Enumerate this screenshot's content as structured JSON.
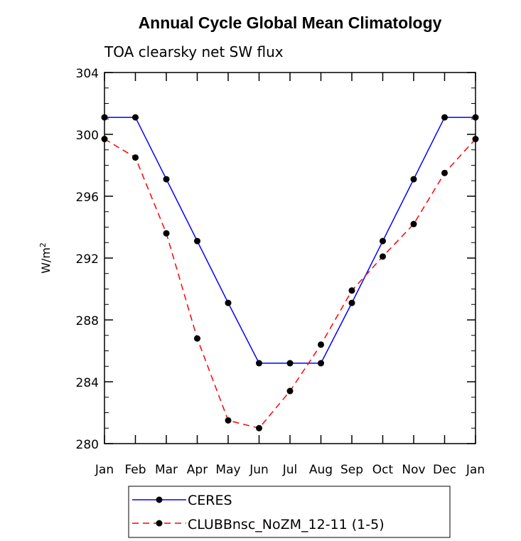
{
  "chart_data": {
    "type": "line",
    "title": "Annual Cycle Global Mean Climatology",
    "subtitle": "TOA clearsky net SW flux",
    "ylabel_main": "W/m",
    "ylabel_sup": "2",
    "xlabel": "",
    "categories": [
      "Jan",
      "Feb",
      "Mar",
      "Apr",
      "May",
      "Jun",
      "Jul",
      "Aug",
      "Sep",
      "Oct",
      "Nov",
      "Dec",
      "Jan"
    ],
    "ylim": [
      280,
      304
    ],
    "yticks": [
      280,
      284,
      288,
      292,
      296,
      300,
      304
    ],
    "yminor_step": 1,
    "grid": false,
    "legend_position": "bottom",
    "series": [
      {
        "name": "CERES",
        "color": "#0000ff",
        "dash": "solid",
        "marker": "circle",
        "values": [
          301.1,
          301.1,
          297.1,
          293.1,
          289.1,
          285.2,
          285.2,
          285.2,
          289.1,
          293.1,
          297.1,
          301.1,
          301.1
        ]
      },
      {
        "name": "CLUBBnsc_NoZM_12-11 (1-5)",
        "color": "#ff0000",
        "dash": "dashed",
        "marker": "circle",
        "values": [
          299.7,
          298.5,
          293.6,
          286.8,
          281.5,
          281.0,
          283.4,
          286.4,
          289.9,
          292.1,
          294.2,
          297.5,
          299.7
        ]
      }
    ]
  }
}
